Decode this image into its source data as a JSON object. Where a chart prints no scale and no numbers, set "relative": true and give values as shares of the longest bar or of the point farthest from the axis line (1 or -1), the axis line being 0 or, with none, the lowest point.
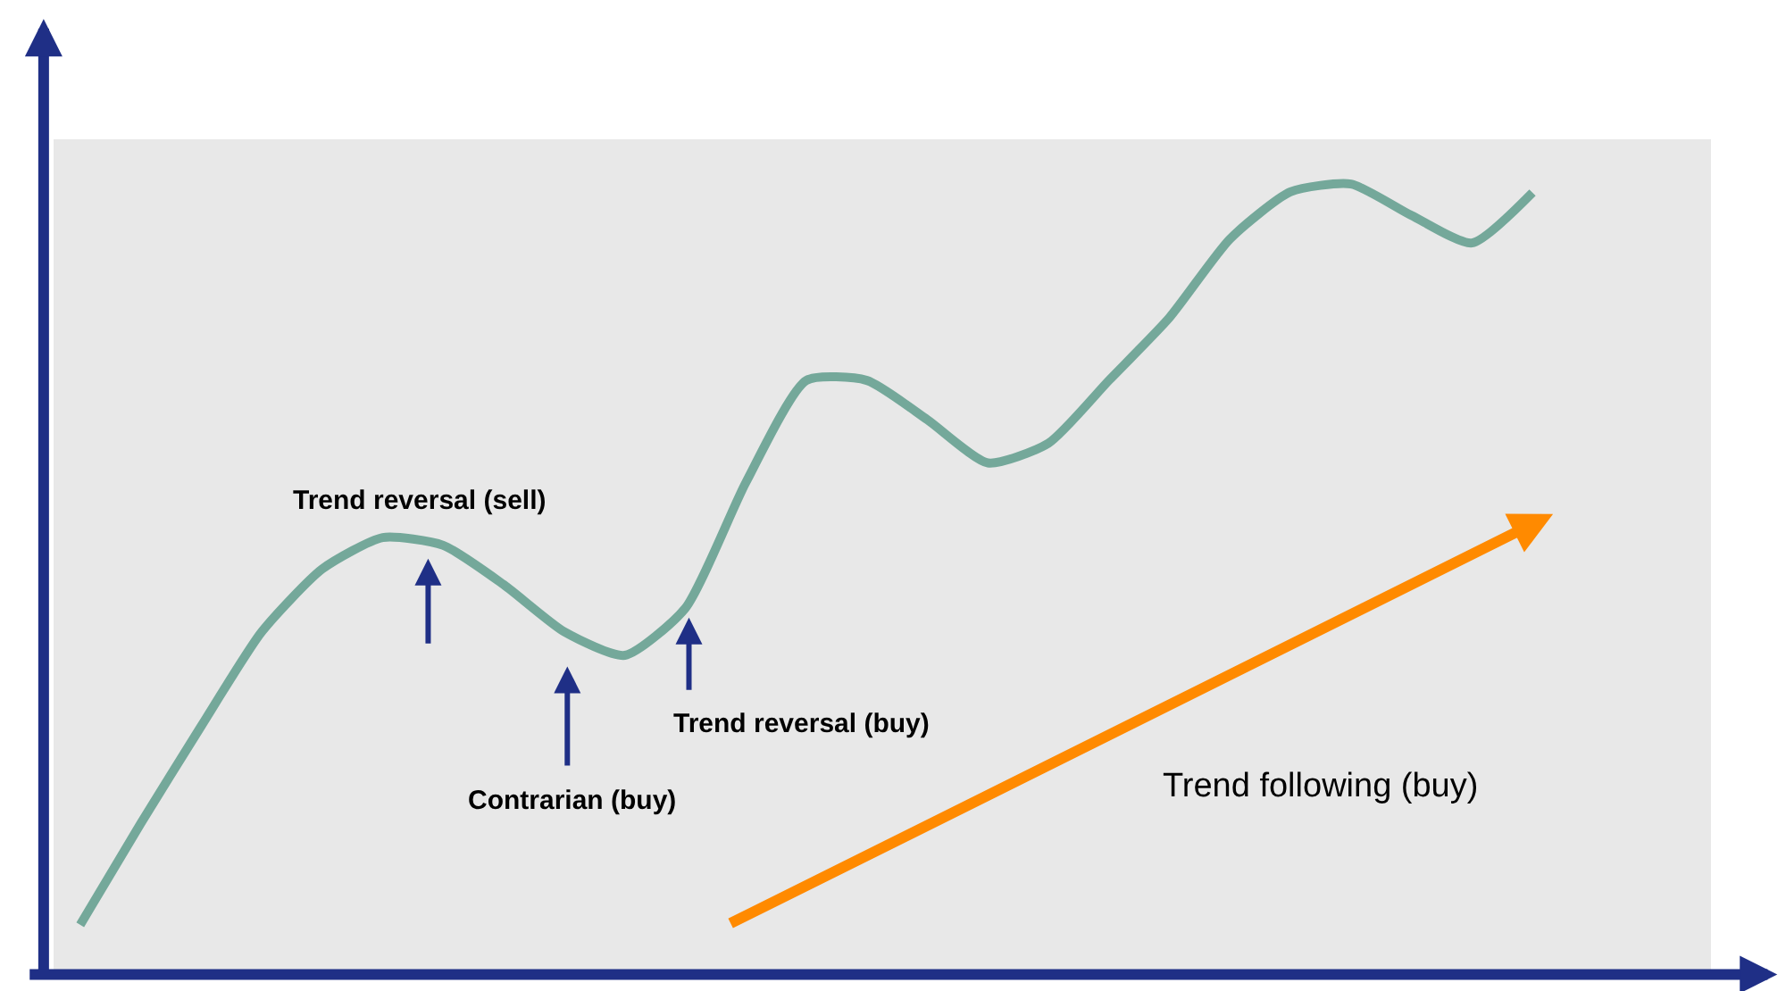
{
  "chart_data": {
    "type": "line",
    "relative": true,
    "categories": [
      null,
      null,
      null,
      null,
      null,
      null,
      null,
      null,
      null,
      null,
      null,
      null,
      null,
      null,
      null,
      null,
      null,
      null,
      null,
      null,
      null,
      null,
      null,
      null,
      null
    ],
    "series": [
      {
        "color": "#74a89a",
        "values": [
          0.057,
          0.186,
          0.31,
          0.43,
          0.51,
          0.55,
          0.54,
          0.49,
          0.43,
          0.4,
          0.46,
          0.62,
          0.75,
          0.75,
          0.7,
          0.645,
          0.67,
          0.75,
          0.83,
          0.93,
          0.99,
          1.0,
          0.96,
          0.925,
          0.989
        ]
      }
    ],
    "annotations": [
      "Trend reversal (sell)",
      "Contrarian (buy)",
      "Trend reversal (buy)",
      "Trend following (buy)"
    ],
    "grid": false,
    "marker": "none",
    "line_style": "solid"
  }
}
